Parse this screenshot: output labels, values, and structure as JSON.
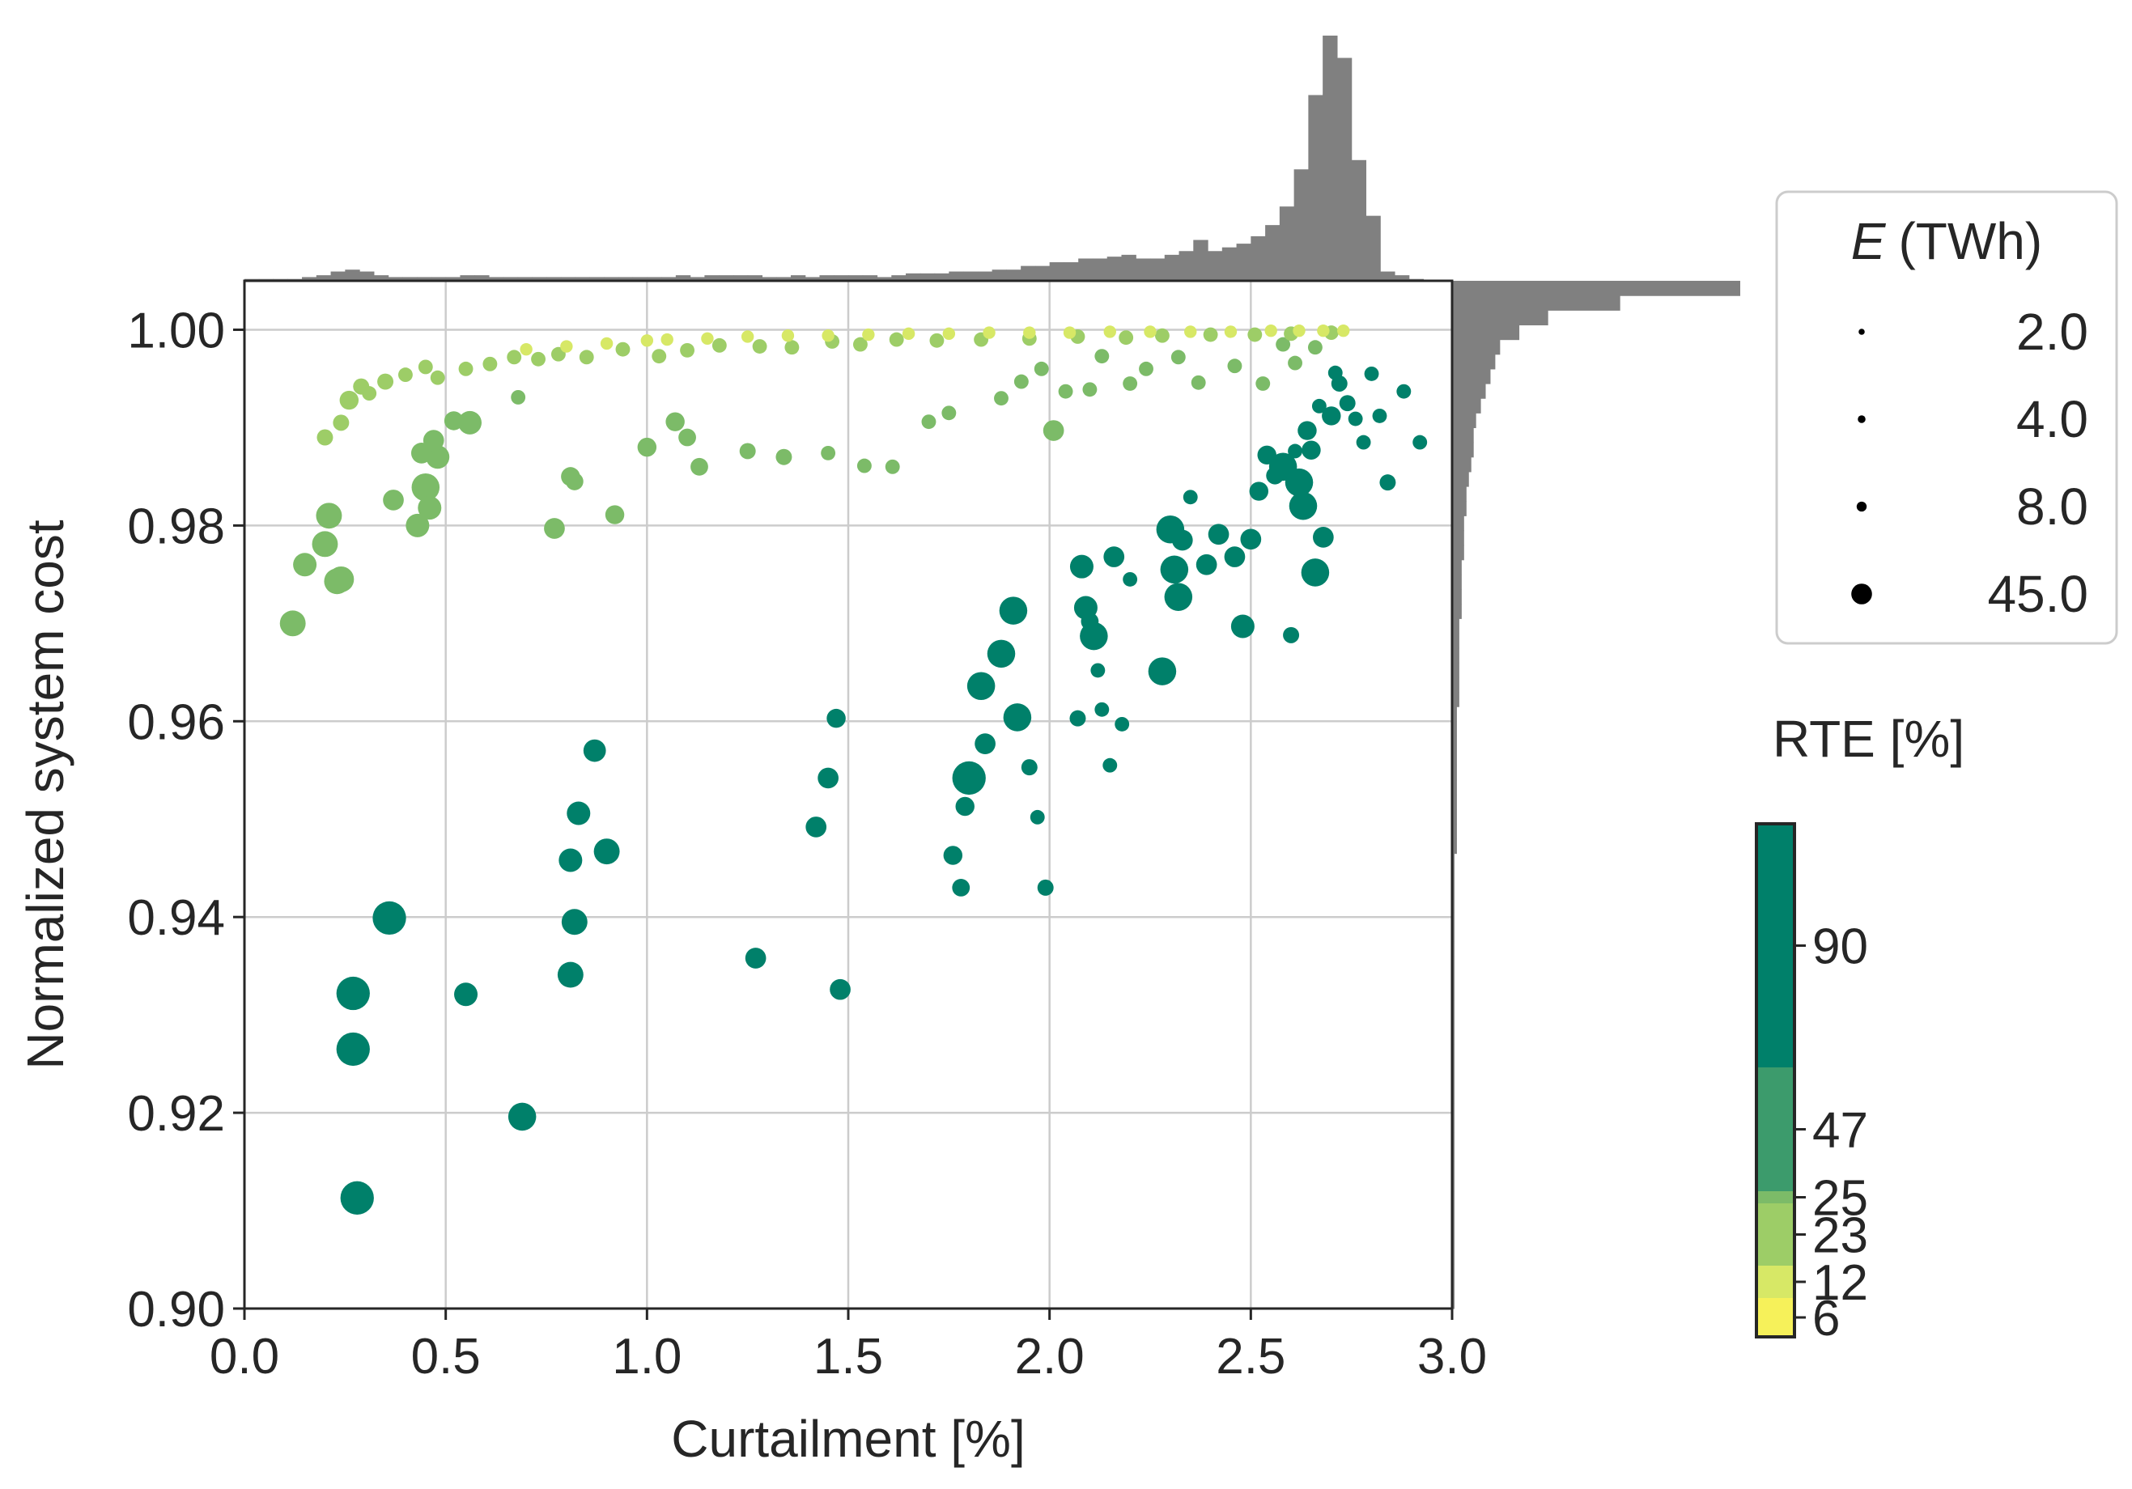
{
  "colors": {
    "grid": "#cccccc",
    "axis": "#262626",
    "hist": "#808080",
    "legend_marker": "#000000"
  },
  "chart_data": {
    "type": "scatter",
    "xlabel": "Curtailment [%]",
    "ylabel": "Normalized system cost",
    "xlim": [
      0.0,
      3.0
    ],
    "ylim": [
      0.9,
      1.005
    ],
    "xticks": [
      "0.0",
      "0.5",
      "1.0",
      "1.5",
      "2.0",
      "2.5",
      "3.0"
    ],
    "yticks": [
      "0.90",
      "0.92",
      "0.94",
      "0.96",
      "0.98",
      "1.00"
    ],
    "grid": true,
    "marginal_histograms": "top (curtailment) and right (normalized system cost), grey",
    "size_legend": {
      "title_symbol": "E",
      "title_unit": "(TWh)",
      "placement": "upper right, outside axes",
      "entries": [
        {
          "label": "2.0",
          "value": 2.0
        },
        {
          "label": "4.0",
          "value": 4.0
        },
        {
          "label": "8.0",
          "value": 8.0
        },
        {
          "label": "45.0",
          "value": 45.0
        }
      ]
    },
    "colorbar": {
      "title": "RTE [%]",
      "placement": "right, below size legend",
      "bins": [
        {
          "label": "6",
          "color": "#f6f15a"
        },
        {
          "label": "12",
          "color": "#d7e866"
        },
        {
          "label": "23",
          "color": "#9dcd67"
        },
        {
          "label": "25",
          "color": "#7cbb68"
        },
        {
          "label": "47",
          "color": "#3c9b6c"
        },
        {
          "label": "90",
          "color": "#00806a"
        }
      ]
    },
    "series": [
      {
        "rte_bin": "90",
        "color": "#00806a",
        "x": [
          0.27,
          0.27,
          0.28,
          0.36,
          0.55,
          0.69,
          0.81,
          0.81,
          0.82,
          0.83,
          0.87,
          0.9,
          1.27,
          1.42,
          1.45,
          1.47,
          1.48,
          1.76,
          1.78,
          1.79,
          1.8,
          1.83,
          1.84,
          1.88,
          1.91,
          1.92,
          1.95,
          1.97,
          1.99,
          2.07,
          2.09,
          2.1,
          2.11,
          2.12,
          2.13,
          2.15,
          2.16,
          2.18,
          2.28,
          2.3,
          2.31,
          2.32,
          2.33,
          2.39,
          2.42,
          2.46,
          2.48,
          2.5,
          2.52,
          2.54,
          2.58,
          2.6,
          2.62,
          2.63,
          2.64,
          2.65,
          2.66,
          2.68,
          2.7,
          2.72,
          2.74,
          2.76,
          2.78,
          2.8,
          2.82,
          2.84,
          2.88,
          2.92,
          2.08,
          2.2,
          2.35,
          2.56,
          2.61,
          2.67,
          2.71
        ],
        "y": [
          0.9322,
          0.9265,
          0.9113,
          0.9399,
          0.9321,
          0.9196,
          0.9458,
          0.9341,
          0.9395,
          0.9506,
          0.957,
          0.9467,
          0.9358,
          0.9492,
          0.9542,
          0.9603,
          0.9326,
          0.9463,
          0.943,
          0.9513,
          0.9542,
          0.9636,
          0.9577,
          0.9669,
          0.9713,
          0.9604,
          0.9553,
          0.9502,
          0.943,
          0.9603,
          0.9716,
          0.9702,
          0.9687,
          0.9652,
          0.9612,
          0.9555,
          0.9768,
          0.9597,
          0.9651,
          0.9796,
          0.9755,
          0.9727,
          0.9785,
          0.976,
          0.9791,
          0.9768,
          0.9697,
          0.9786,
          0.9835,
          0.9872,
          0.986,
          0.9688,
          0.9844,
          0.982,
          0.9897,
          0.9877,
          0.9752,
          0.9788,
          0.9912,
          0.9945,
          0.9925,
          0.9909,
          0.9885,
          0.9955,
          0.9912,
          0.9844,
          0.9937,
          0.9885,
          0.9758,
          0.9745,
          0.9829,
          0.9851,
          0.9876,
          0.9922,
          0.9956
        ],
        "sizes": [
          45,
          45,
          45,
          45,
          20,
          30,
          20,
          25,
          25,
          20,
          18,
          25,
          15,
          15,
          15,
          12,
          15,
          12,
          10,
          12,
          45,
          30,
          15,
          30,
          30,
          30,
          8,
          6,
          8,
          8,
          20,
          10,
          30,
          6,
          6,
          6,
          15,
          6,
          30,
          30,
          30,
          30,
          15,
          15,
          15,
          15,
          20,
          15,
          12,
          12,
          30,
          8,
          30,
          30,
          12,
          12,
          30,
          15,
          12,
          8,
          8,
          6,
          6,
          6,
          6,
          8,
          6,
          6,
          20,
          6,
          6,
          10,
          6,
          6,
          6
        ]
      },
      {
        "rte_bin": "25",
        "color": "#7cbb68",
        "x": [
          0.12,
          0.15,
          0.2,
          0.21,
          0.23,
          0.24,
          0.37,
          0.43,
          0.44,
          0.45,
          0.46,
          0.47,
          0.48,
          0.52,
          0.56,
          0.68,
          0.77,
          0.81,
          0.82,
          0.92,
          1.0,
          1.07,
          1.1,
          1.13,
          1.25,
          1.34,
          1.45,
          1.54,
          1.61,
          1.7,
          1.75,
          1.88,
          1.93,
          1.98,
          2.01,
          2.04,
          2.1,
          2.13,
          2.2,
          2.24,
          2.32,
          2.37,
          2.46,
          2.53,
          2.58,
          2.61,
          2.66
        ],
        "y": [
          0.97,
          0.976,
          0.9781,
          0.981,
          0.9743,
          0.9745,
          0.9826,
          0.98,
          0.9874,
          0.9839,
          0.9818,
          0.9887,
          0.987,
          0.9907,
          0.9905,
          0.9931,
          0.9797,
          0.985,
          0.9845,
          0.9811,
          0.988,
          0.9906,
          0.989,
          0.986,
          0.9876,
          0.987,
          0.9874,
          0.9861,
          0.986,
          0.9906,
          0.9915,
          0.993,
          0.9947,
          0.996,
          0.9897,
          0.9937,
          0.9939,
          0.9973,
          0.9945,
          0.996,
          0.9972,
          0.9946,
          0.9963,
          0.9945,
          0.9985,
          0.9966,
          0.9982
        ],
        "sizes": [
          25,
          20,
          25,
          25,
          25,
          25,
          15,
          20,
          15,
          30,
          20,
          15,
          20,
          12,
          20,
          6,
          15,
          12,
          10,
          12,
          12,
          12,
          10,
          10,
          8,
          8,
          6,
          6,
          6,
          6,
          6,
          6,
          6,
          6,
          15,
          6,
          6,
          6,
          6,
          6,
          6,
          6,
          6,
          6,
          6,
          6,
          6
        ]
      },
      {
        "rte_bin": "23",
        "color": "#9dcd67",
        "x": [
          0.2,
          0.24,
          0.26,
          0.29,
          0.31,
          0.35,
          0.4,
          0.45,
          0.48,
          0.55,
          0.61,
          0.67,
          0.73,
          0.78,
          0.85,
          0.94,
          1.03,
          1.1,
          1.18,
          1.28,
          1.36,
          1.46,
          1.53,
          1.62,
          1.72,
          1.83,
          1.95,
          2.07,
          2.19,
          2.28,
          2.4,
          2.51,
          2.6,
          2.7
        ],
        "y": [
          0.989,
          0.9905,
          0.9928,
          0.9942,
          0.9935,
          0.9947,
          0.9954,
          0.9962,
          0.9951,
          0.996,
          0.9965,
          0.9972,
          0.997,
          0.9975,
          0.9972,
          0.998,
          0.9973,
          0.9979,
          0.9984,
          0.9983,
          0.9982,
          0.9988,
          0.9985,
          0.999,
          0.9989,
          0.999,
          0.9991,
          0.9993,
          0.9992,
          0.9994,
          0.9995,
          0.9995,
          0.9996,
          0.9997
        ],
        "sizes": [
          8,
          8,
          12,
          8,
          6,
          8,
          6,
          6,
          6,
          6,
          6,
          6,
          6,
          6,
          6,
          6,
          6,
          6,
          6,
          6,
          6,
          6,
          6,
          6,
          6,
          6,
          6,
          6,
          6,
          6,
          6,
          6,
          6,
          6
        ]
      },
      {
        "rte_bin": "12",
        "color": "#d7e866",
        "x": [
          0.7,
          0.8,
          0.9,
          1.0,
          1.05,
          1.15,
          1.25,
          1.35,
          1.45,
          1.55,
          1.65,
          1.75,
          1.85,
          1.95,
          2.05,
          2.15,
          2.25,
          2.35,
          2.45,
          2.55,
          2.62,
          2.68,
          2.73
        ],
        "y": [
          0.998,
          0.9983,
          0.9986,
          0.9989,
          0.999,
          0.9991,
          0.9993,
          0.9994,
          0.9994,
          0.9995,
          0.9996,
          0.9996,
          0.9997,
          0.9997,
          0.9997,
          0.9998,
          0.9998,
          0.9998,
          0.9998,
          0.9999,
          0.9999,
          0.9999,
          0.9999
        ],
        "sizes": [
          4,
          4,
          4,
          4,
          4,
          4,
          4,
          4,
          4,
          4,
          4,
          4,
          4,
          4,
          4,
          4,
          4,
          4,
          4,
          4,
          4,
          4,
          4
        ]
      }
    ],
    "x_hist_counts": [
      1,
      1,
      1,
      1,
      2,
      3,
      5,
      6,
      5,
      3,
      2,
      2,
      2,
      2,
      2,
      3,
      3,
      2,
      2,
      2,
      2,
      2,
      2,
      2,
      2,
      2,
      2,
      2,
      2,
      2,
      3,
      2,
      3,
      3,
      3,
      3,
      2,
      2,
      3,
      2,
      3,
      3,
      3,
      3,
      2,
      3,
      4,
      4,
      4,
      5,
      5,
      5,
      6,
      6,
      8,
      8,
      10,
      10,
      12,
      12,
      13,
      14,
      12,
      12,
      14,
      16,
      22,
      16,
      18,
      20,
      24,
      30,
      40,
      60,
      100,
      132,
      120,
      65,
      35,
      5,
      3,
      1,
      0,
      0
    ],
    "y_hist_counts": [
      1,
      1,
      1,
      1,
      1,
      1,
      1,
      1,
      1,
      1,
      1,
      1,
      1,
      1,
      1,
      1,
      1,
      1,
      1,
      1,
      1,
      1,
      1,
      1,
      1,
      1,
      1,
      1,
      1,
      1,
      1,
      2,
      2,
      2,
      2,
      2,
      2,
      2,
      2,
      2,
      2,
      3,
      3,
      3,
      3,
      3,
      3,
      4,
      4,
      4,
      4,
      5,
      5,
      5,
      6,
      6,
      7,
      8,
      9,
      9,
      10,
      12,
      14,
      16,
      18,
      20,
      28,
      40,
      70,
      120
    ]
  }
}
